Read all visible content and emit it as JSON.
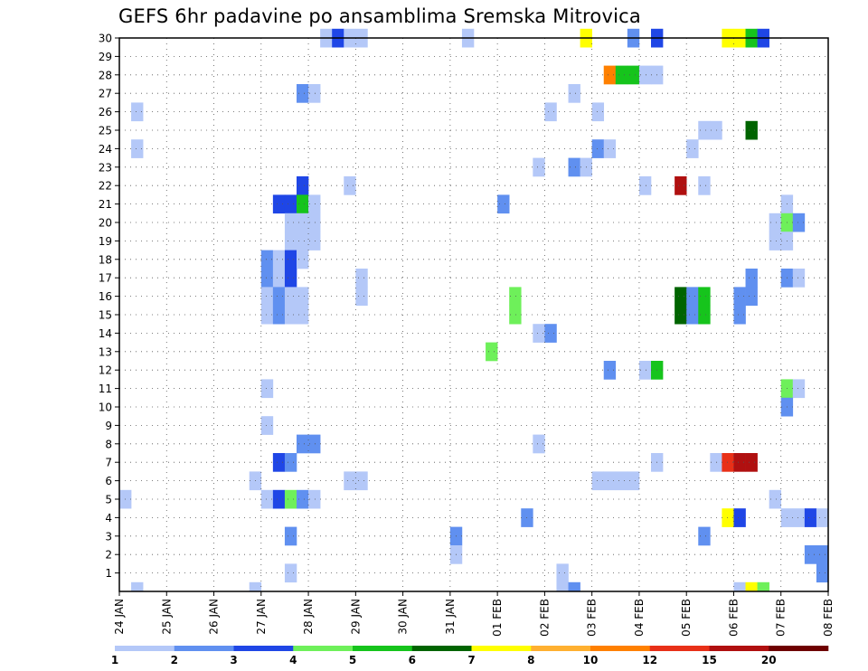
{
  "chart_data": {
    "type": "heatmap",
    "title": "GEFS 6hr padavine po ansamblima Sremska Mitrovica",
    "xlabel": "",
    "ylabel": "",
    "y_ticks": [
      "1",
      "2",
      "3",
      "4",
      "5",
      "6",
      "7",
      "8",
      "9",
      "10",
      "11",
      "12",
      "13",
      "14",
      "15",
      "16",
      "17",
      "18",
      "19",
      "20",
      "21",
      "22",
      "23",
      "24",
      "25",
      "26",
      "27",
      "28",
      "29",
      "30"
    ],
    "x_ticks": [
      "24 JAN",
      "25 JAN",
      "26 JAN",
      "27 JAN",
      "28 JAN",
      "29 JAN",
      "30 JAN",
      "31 JAN",
      "01 FEB",
      "02 FEB",
      "03 FEB",
      "04 FEB",
      "05 FEB",
      "06 FEB",
      "07 FEB",
      "08 FEB"
    ],
    "x_range_days": [
      0,
      15
    ],
    "y_range_members": [
      0,
      30
    ],
    "step_hours": 6,
    "grid": true,
    "legend_placement": "bottom",
    "legend_labels": [
      "1",
      "2",
      "3",
      "4",
      "5",
      "6",
      "7",
      "8",
      "10",
      "12",
      "15",
      "20"
    ],
    "color_scale": [
      "#b4c8f8",
      "#6090f0",
      "#1f46e6",
      "#6ef05a",
      "#16c41c",
      "#006400",
      "#ffff00",
      "#ffb030",
      "#ff8000",
      "#e83018",
      "#b01010",
      "#6e0000"
    ],
    "cells": [
      {
        "member": 30,
        "day": 4.25,
        "level": 1
      },
      {
        "member": 30,
        "day": 4.5,
        "level": 3
      },
      {
        "member": 30,
        "day": 4.75,
        "level": 1
      },
      {
        "member": 30,
        "day": 5.0,
        "level": 1
      },
      {
        "member": 30,
        "day": 7.25,
        "level": 1
      },
      {
        "member": 30,
        "day": 9.75,
        "level": 7
      },
      {
        "member": 30,
        "day": 10.75,
        "level": 2
      },
      {
        "member": 30,
        "day": 11.25,
        "level": 3
      },
      {
        "member": 30,
        "day": 12.75,
        "level": 7
      },
      {
        "member": 30,
        "day": 13.0,
        "level": 7
      },
      {
        "member": 30,
        "day": 13.25,
        "level": 5
      },
      {
        "member": 30,
        "day": 13.5,
        "level": 3
      },
      {
        "member": 28,
        "day": 10.25,
        "level": 9
      },
      {
        "member": 28,
        "day": 10.5,
        "level": 5
      },
      {
        "member": 28,
        "day": 10.75,
        "level": 5
      },
      {
        "member": 28,
        "day": 11.0,
        "level": 1
      },
      {
        "member": 28,
        "day": 11.25,
        "level": 1
      },
      {
        "member": 27,
        "day": 3.75,
        "level": 2
      },
      {
        "member": 27,
        "day": 4.0,
        "level": 1
      },
      {
        "member": 27,
        "day": 9.5,
        "level": 1
      },
      {
        "member": 26,
        "day": 0.25,
        "level": 1
      },
      {
        "member": 26,
        "day": 9.0,
        "level": 1
      },
      {
        "member": 26,
        "day": 10.0,
        "level": 1
      },
      {
        "member": 25,
        "day": 12.25,
        "level": 1
      },
      {
        "member": 25,
        "day": 12.5,
        "level": 1
      },
      {
        "member": 25,
        "day": 13.25,
        "level": 6
      },
      {
        "member": 24,
        "day": 0.25,
        "level": 1
      },
      {
        "member": 24,
        "day": 10.0,
        "level": 2
      },
      {
        "member": 24,
        "day": 10.25,
        "level": 1
      },
      {
        "member": 24,
        "day": 12.0,
        "level": 1
      },
      {
        "member": 23,
        "day": 8.75,
        "level": 1
      },
      {
        "member": 23,
        "day": 9.5,
        "level": 2
      },
      {
        "member": 23,
        "day": 9.75,
        "level": 1
      },
      {
        "member": 22,
        "day": 3.75,
        "level": 3
      },
      {
        "member": 22,
        "day": 4.75,
        "level": 1
      },
      {
        "member": 22,
        "day": 11.0,
        "level": 1
      },
      {
        "member": 22,
        "day": 11.75,
        "level": 11
      },
      {
        "member": 22,
        "day": 12.25,
        "level": 1
      },
      {
        "member": 21,
        "day": 3.25,
        "level": 3
      },
      {
        "member": 21,
        "day": 3.5,
        "level": 3
      },
      {
        "member": 21,
        "day": 3.75,
        "level": 5
      },
      {
        "member": 21,
        "day": 4.0,
        "level": 1
      },
      {
        "member": 21,
        "day": 8.0,
        "level": 2
      },
      {
        "member": 21,
        "day": 14.0,
        "level": 1
      },
      {
        "member": 20,
        "day": 3.5,
        "level": 1
      },
      {
        "member": 20,
        "day": 3.75,
        "level": 1
      },
      {
        "member": 20,
        "day": 4.0,
        "level": 1
      },
      {
        "member": 20,
        "day": 13.75,
        "level": 1
      },
      {
        "member": 20,
        "day": 14.0,
        "level": 4
      },
      {
        "member": 20,
        "day": 14.25,
        "level": 2
      },
      {
        "member": 19,
        "day": 3.5,
        "level": 1
      },
      {
        "member": 19,
        "day": 3.75,
        "level": 1
      },
      {
        "member": 19,
        "day": 4.0,
        "level": 1
      },
      {
        "member": 19,
        "day": 13.75,
        "level": 1
      },
      {
        "member": 19,
        "day": 14.0,
        "level": 1
      },
      {
        "member": 18,
        "day": 3.0,
        "level": 2
      },
      {
        "member": 18,
        "day": 3.25,
        "level": 1
      },
      {
        "member": 18,
        "day": 3.5,
        "level": 3
      },
      {
        "member": 18,
        "day": 3.75,
        "level": 1
      },
      {
        "member": 17,
        "day": 3.0,
        "level": 2
      },
      {
        "member": 17,
        "day": 3.25,
        "level": 1
      },
      {
        "member": 17,
        "day": 3.5,
        "level": 3
      },
      {
        "member": 17,
        "day": 5.0,
        "level": 1
      },
      {
        "member": 17,
        "day": 14.0,
        "level": 2
      },
      {
        "member": 17,
        "day": 14.25,
        "level": 1
      },
      {
        "member": 17,
        "day": 13.25,
        "level": 2
      },
      {
        "member": 16,
        "day": 3.0,
        "level": 1
      },
      {
        "member": 16,
        "day": 3.25,
        "level": 2
      },
      {
        "member": 16,
        "day": 3.5,
        "level": 1
      },
      {
        "member": 16,
        "day": 3.75,
        "level": 1
      },
      {
        "member": 16,
        "day": 5.0,
        "level": 1
      },
      {
        "member": 16,
        "day": 8.25,
        "level": 4
      },
      {
        "member": 16,
        "day": 11.75,
        "level": 6
      },
      {
        "member": 16,
        "day": 12.0,
        "level": 2
      },
      {
        "member": 16,
        "day": 12.25,
        "level": 5
      },
      {
        "member": 16,
        "day": 13.0,
        "level": 2
      },
      {
        "member": 16,
        "day": 13.25,
        "level": 2
      },
      {
        "member": 15,
        "day": 3.0,
        "level": 1
      },
      {
        "member": 15,
        "day": 3.25,
        "level": 2
      },
      {
        "member": 15,
        "day": 3.5,
        "level": 1
      },
      {
        "member": 15,
        "day": 3.75,
        "level": 1
      },
      {
        "member": 15,
        "day": 8.25,
        "level": 4
      },
      {
        "member": 15,
        "day": 11.75,
        "level": 6
      },
      {
        "member": 15,
        "day": 12.0,
        "level": 2
      },
      {
        "member": 15,
        "day": 12.25,
        "level": 5
      },
      {
        "member": 15,
        "day": 13.0,
        "level": 2
      },
      {
        "member": 14,
        "day": 8.75,
        "level": 1
      },
      {
        "member": 14,
        "day": 9.0,
        "level": 2
      },
      {
        "member": 13,
        "day": 7.75,
        "level": 4
      },
      {
        "member": 12,
        "day": 10.25,
        "level": 2
      },
      {
        "member": 12,
        "day": 11.0,
        "level": 1
      },
      {
        "member": 12,
        "day": 11.25,
        "level": 5
      },
      {
        "member": 11,
        "day": 3.0,
        "level": 1
      },
      {
        "member": 11,
        "day": 14.0,
        "level": 4
      },
      {
        "member": 11,
        "day": 14.25,
        "level": 1
      },
      {
        "member": 10,
        "day": 14.0,
        "level": 2
      },
      {
        "member": 9,
        "day": 3.0,
        "level": 1
      },
      {
        "member": 8,
        "day": 3.75,
        "level": 2
      },
      {
        "member": 8,
        "day": 4.0,
        "level": 2
      },
      {
        "member": 8,
        "day": 8.75,
        "level": 1
      },
      {
        "member": 7,
        "day": 3.25,
        "level": 3
      },
      {
        "member": 7,
        "day": 3.5,
        "level": 2
      },
      {
        "member": 7,
        "day": 11.25,
        "level": 1
      },
      {
        "member": 7,
        "day": 12.5,
        "level": 1
      },
      {
        "member": 7,
        "day": 12.75,
        "level": 10
      },
      {
        "member": 7,
        "day": 13.0,
        "level": 11
      },
      {
        "member": 7,
        "day": 13.25,
        "level": 11
      },
      {
        "member": 6,
        "day": 2.75,
        "level": 1
      },
      {
        "member": 6,
        "day": 4.75,
        "level": 1
      },
      {
        "member": 6,
        "day": 5.0,
        "level": 1
      },
      {
        "member": 6,
        "day": 10.0,
        "level": 1
      },
      {
        "member": 6,
        "day": 10.25,
        "level": 1
      },
      {
        "member": 6,
        "day": 10.5,
        "level": 1
      },
      {
        "member": 6,
        "day": 10.75,
        "level": 1
      },
      {
        "member": 5,
        "day": 0.0,
        "level": 1
      },
      {
        "member": 5,
        "day": 3.0,
        "level": 1
      },
      {
        "member": 5,
        "day": 3.25,
        "level": 3
      },
      {
        "member": 5,
        "day": 3.5,
        "level": 4
      },
      {
        "member": 5,
        "day": 3.75,
        "level": 2
      },
      {
        "member": 5,
        "day": 4.0,
        "level": 1
      },
      {
        "member": 5,
        "day": 13.75,
        "level": 1
      },
      {
        "member": 4,
        "day": 8.5,
        "level": 2
      },
      {
        "member": 4,
        "day": 12.75,
        "level": 7
      },
      {
        "member": 4,
        "day": 13.0,
        "level": 3
      },
      {
        "member": 4,
        "day": 14.0,
        "level": 1
      },
      {
        "member": 4,
        "day": 14.25,
        "level": 1
      },
      {
        "member": 4,
        "day": 14.5,
        "level": 3
      },
      {
        "member": 4,
        "day": 14.75,
        "level": 1
      },
      {
        "member": 3,
        "day": 3.5,
        "level": 2
      },
      {
        "member": 3,
        "day": 7.0,
        "level": 2
      },
      {
        "member": 3,
        "day": 12.25,
        "level": 2
      },
      {
        "member": 2,
        "day": 7.0,
        "level": 1
      },
      {
        "member": 2,
        "day": 14.5,
        "level": 2
      },
      {
        "member": 2,
        "day": 14.75,
        "level": 2
      },
      {
        "member": 1,
        "day": 3.5,
        "level": 1
      },
      {
        "member": 1,
        "day": 9.25,
        "level": 1
      },
      {
        "member": 1,
        "day": 14.75,
        "level": 2
      },
      {
        "member": 0,
        "day": 0.25,
        "level": 1
      },
      {
        "member": 0,
        "day": 2.75,
        "level": 1
      },
      {
        "member": 0,
        "day": 9.25,
        "level": 1
      },
      {
        "member": 0,
        "day": 9.5,
        "level": 2
      },
      {
        "member": 0,
        "day": 13.0,
        "level": 1
      },
      {
        "member": 0,
        "day": 13.25,
        "level": 7
      },
      {
        "member": 0,
        "day": 13.5,
        "level": 4
      }
    ]
  }
}
